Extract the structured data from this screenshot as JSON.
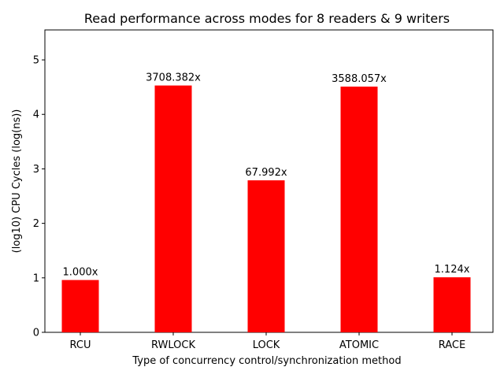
{
  "chart_data": {
    "type": "bar",
    "title": "Read performance across modes for 8 readers & 9 writers",
    "xlabel": "Type of concurrency control/synchronization method",
    "ylabel": "(log10) CPU Cycles (log(ns))",
    "categories": [
      "RCU",
      "RWLOCK",
      "LOCK",
      "ATOMIC",
      "RACE"
    ],
    "values": [
      0.96,
      4.53,
      2.79,
      4.51,
      1.01
    ],
    "bar_labels": [
      "1.000x",
      "3708.382x",
      "67.992x",
      "3588.057x",
      "1.124x"
    ],
    "bar_color": "#ff0000",
    "ylim": [
      0,
      5.55
    ],
    "yticks": [
      0,
      1,
      2,
      3,
      4,
      5
    ],
    "grid": false,
    "legend": "none"
  }
}
